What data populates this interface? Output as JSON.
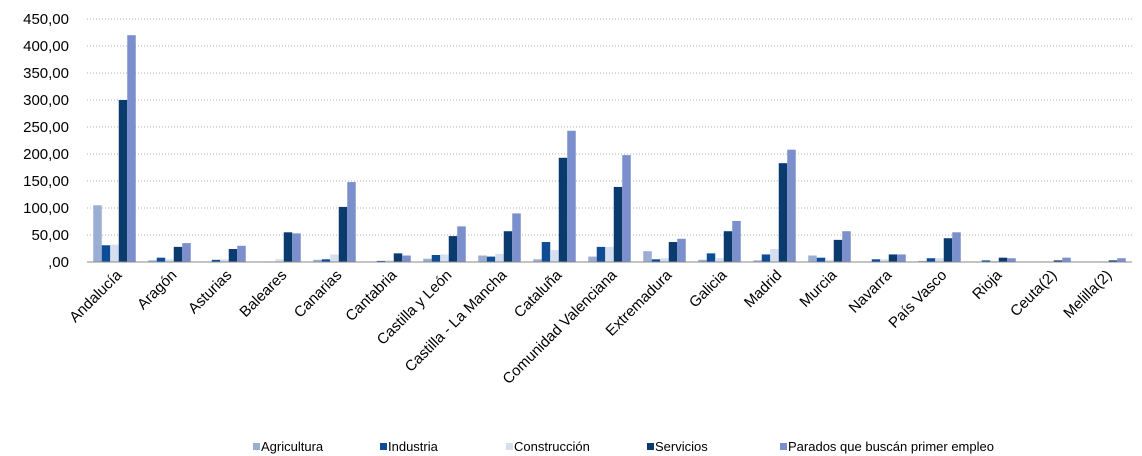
{
  "chart_data": {
    "type": "bar",
    "title": "",
    "xlabel": "",
    "ylabel": "",
    "ylim": [
      0,
      450
    ],
    "ytick_values": [
      0,
      50,
      100,
      150,
      200,
      250,
      300,
      350,
      400,
      450
    ],
    "ytick_labels": [
      ",00",
      "50,00",
      "100,00",
      "150,00",
      "200,00",
      "250,00",
      "300,00",
      "350,00",
      "400,00",
      "450,00"
    ],
    "grid": true,
    "legend_position": "bottom",
    "categories": [
      "Andalucía",
      "Aragón",
      "Asturias",
      "Baleares",
      "Canarias",
      "Cantabria",
      "Castilla y León",
      "Castilla - La Mancha",
      "Cataluña",
      "Comunidad Valenciana",
      "Extremadura",
      "Galicia",
      "Madrid",
      "Murcia",
      "Navarra",
      "País Vasco",
      "Rioja",
      "Ceuta(2)",
      "Melilla(2)"
    ],
    "series": [
      {
        "name": "Agricultura",
        "color": "#9aaed3",
        "values": [
          105,
          3,
          1,
          1,
          4,
          1,
          6,
          12,
          5,
          10,
          20,
          4,
          3,
          12,
          1,
          2,
          1,
          0,
          0
        ]
      },
      {
        "name": "Industria",
        "color": "#0e4d96",
        "values": [
          31,
          8,
          4,
          1,
          5,
          2,
          13,
          10,
          37,
          28,
          5,
          16,
          14,
          8,
          5,
          7,
          3,
          0,
          0
        ]
      },
      {
        "name": "Construcción",
        "color": "#d5dff0",
        "values": [
          32,
          5,
          5,
          5,
          14,
          3,
          14,
          15,
          22,
          28,
          7,
          7,
          24,
          4,
          5,
          7,
          2,
          1,
          1
        ]
      },
      {
        "name": "Servicios",
        "color": "#0b3a6e",
        "values": [
          300,
          28,
          24,
          55,
          102,
          16,
          48,
          57,
          193,
          139,
          37,
          57,
          183,
          41,
          14,
          44,
          8,
          3,
          3
        ]
      },
      {
        "name": "Parados que buscán primer empleo",
        "color": "#7b8fcc",
        "values": [
          420,
          35,
          30,
          53,
          148,
          12,
          66,
          90,
          243,
          198,
          43,
          76,
          208,
          57,
          14,
          55,
          7,
          8,
          7
        ]
      }
    ]
  }
}
